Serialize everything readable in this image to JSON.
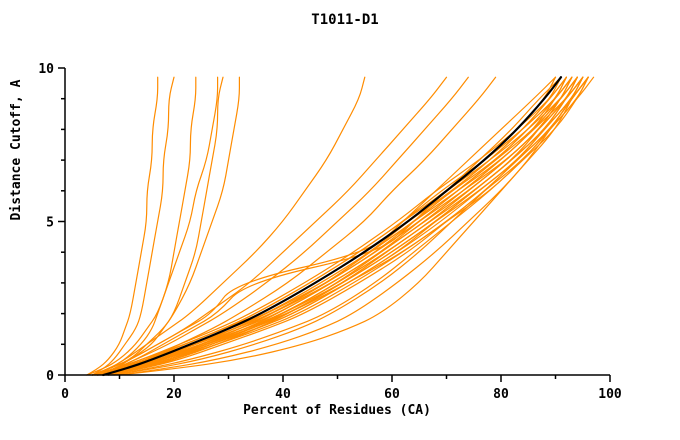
{
  "chart_data": {
    "type": "line",
    "title": "T1011-D1",
    "xlabel": "Percent of Residues (CA)",
    "ylabel": "Distance Cutoff, A",
    "xlim": [
      0,
      100
    ],
    "ylim": [
      0,
      10
    ],
    "x_ticks_major": [
      0,
      20,
      40,
      60,
      80,
      100
    ],
    "x_ticks_minor": [
      10,
      30,
      50,
      70,
      90
    ],
    "y_ticks_major": [
      0,
      5,
      10
    ],
    "y_ticks_minor": [
      1,
      2,
      3,
      4,
      6,
      7,
      8,
      9
    ],
    "grid": false,
    "legend": "none",
    "colors": {
      "model": "#ff8c00",
      "reference": "#000000",
      "background": "#ffffff"
    },
    "y_values": [
      0,
      0.2,
      0.5,
      1,
      1.5,
      2,
      3,
      4,
      5,
      6,
      7,
      8,
      9,
      9.7
    ],
    "reference_curve": {
      "name": "reference-model",
      "x_at_y": [
        7,
        11,
        16,
        23,
        30,
        36,
        46,
        55,
        63,
        70,
        77,
        83,
        88,
        91
      ]
    },
    "model_curves": [
      [
        6,
        10,
        15,
        22,
        29,
        35,
        45,
        54,
        62,
        69,
        77,
        84,
        90,
        93
      ],
      [
        7,
        12,
        18,
        26,
        33,
        39,
        49,
        58,
        65,
        72,
        79,
        85,
        90,
        92
      ],
      [
        5,
        9,
        14,
        21,
        28,
        34,
        44,
        53,
        61,
        68,
        76,
        83,
        89,
        92
      ],
      [
        8,
        13,
        19,
        27,
        34,
        40,
        50,
        58,
        66,
        73,
        80,
        86,
        91,
        94
      ],
      [
        6,
        11,
        17,
        25,
        32,
        38,
        48,
        57,
        64,
        71,
        78,
        84,
        89,
        91
      ],
      [
        7,
        12,
        17,
        24,
        31,
        37,
        47,
        56,
        63,
        70,
        77,
        83,
        88,
        90
      ],
      [
        5,
        10,
        16,
        23,
        30,
        36,
        46,
        55,
        63,
        70,
        78,
        85,
        91,
        94
      ],
      [
        8,
        14,
        20,
        28,
        35,
        41,
        51,
        59,
        67,
        74,
        81,
        87,
        92,
        95
      ],
      [
        6,
        11,
        16,
        24,
        31,
        38,
        48,
        56,
        64,
        71,
        79,
        85,
        90,
        93
      ],
      [
        7,
        13,
        19,
        27,
        34,
        41,
        51,
        60,
        68,
        75,
        82,
        88,
        93,
        96
      ],
      [
        5,
        9,
        15,
        22,
        29,
        36,
        46,
        55,
        63,
        71,
        78,
        84,
        89,
        92
      ],
      [
        6,
        12,
        18,
        26,
        34,
        40,
        50,
        59,
        67,
        74,
        81,
        87,
        91,
        93
      ],
      [
        8,
        13,
        18,
        25,
        32,
        38,
        48,
        57,
        65,
        72,
        79,
        86,
        91,
        94
      ],
      [
        6,
        10,
        15,
        23,
        30,
        37,
        47,
        56,
        64,
        72,
        80,
        86,
        92,
        95
      ],
      [
        7,
        11,
        17,
        25,
        33,
        40,
        51,
        60,
        68,
        75,
        82,
        88,
        92,
        94
      ],
      [
        5,
        10,
        16,
        24,
        32,
        39,
        49,
        58,
        66,
        73,
        80,
        86,
        90,
        92
      ],
      [
        6,
        11,
        18,
        27,
        35,
        42,
        52,
        61,
        69,
        76,
        83,
        88,
        93,
        95
      ],
      [
        7,
        12,
        19,
        28,
        36,
        43,
        53,
        62,
        70,
        77,
        83,
        89,
        93,
        96
      ],
      [
        6,
        10,
        16,
        24,
        31,
        37,
        48,
        57,
        65,
        73,
        81,
        87,
        92,
        94
      ],
      [
        8,
        14,
        21,
        29,
        37,
        44,
        54,
        63,
        70,
        77,
        84,
        89,
        94,
        97
      ],
      [
        5,
        9,
        14,
        22,
        29,
        35,
        45,
        54,
        62,
        70,
        77,
        84,
        90,
        93
      ],
      [
        7,
        13,
        20,
        28,
        35,
        42,
        52,
        61,
        68,
        75,
        82,
        87,
        91,
        93
      ],
      [
        6,
        12,
        17,
        26,
        33,
        40,
        50,
        59,
        67,
        75,
        82,
        88,
        93,
        95
      ],
      [
        7,
        11,
        16,
        23,
        31,
        38,
        49,
        58,
        66,
        74,
        81,
        87,
        92,
        95
      ],
      [
        6,
        10,
        17,
        25,
        33,
        41,
        52,
        62,
        70,
        78,
        84,
        90,
        94,
        96
      ],
      [
        8,
        12,
        18,
        26,
        34,
        41,
        51,
        60,
        68,
        76,
        83,
        89,
        94,
        96
      ],
      [
        9,
        16,
        25,
        35,
        43,
        49,
        58,
        65,
        71,
        77,
        83,
        88,
        92,
        94
      ],
      [
        10,
        18,
        28,
        39,
        47,
        53,
        61,
        68,
        74,
        80,
        85,
        90,
        93,
        95
      ],
      [
        9,
        15,
        23,
        33,
        41,
        48,
        57,
        64,
        71,
        78,
        84,
        89,
        93,
        96
      ],
      [
        4,
        6,
        8,
        10,
        11,
        12,
        13,
        14,
        15,
        15,
        16,
        16,
        17,
        17
      ],
      [
        5,
        7,
        9,
        11,
        13,
        14,
        15,
        16,
        17,
        18,
        18,
        19,
        19,
        20
      ],
      [
        5,
        8,
        11,
        14,
        16,
        17,
        19,
        20,
        21,
        22,
        23,
        23,
        24,
        24
      ],
      [
        6,
        9,
        12,
        16,
        18,
        20,
        22,
        24,
        25,
        26,
        27,
        28,
        28,
        29
      ],
      [
        5,
        8,
        12,
        15,
        18,
        20,
        23,
        25,
        27,
        29,
        30,
        31,
        32,
        32
      ],
      [
        4,
        7,
        10,
        13,
        15,
        17,
        19,
        21,
        23,
        24,
        26,
        27,
        28,
        28
      ],
      [
        6,
        9,
        13,
        19,
        24,
        29,
        37,
        44,
        50,
        56,
        61,
        66,
        71,
        74
      ],
      [
        7,
        10,
        15,
        21,
        27,
        32,
        41,
        48,
        55,
        60,
        66,
        71,
        76,
        79
      ],
      [
        5,
        8,
        12,
        17,
        22,
        26,
        34,
        40,
        46,
        52,
        57,
        62,
        67,
        70
      ],
      [
        5,
        8,
        12,
        17,
        22,
        27,
        31,
        56,
        62,
        68,
        74,
        80,
        86,
        90
      ],
      [
        6,
        9,
        13,
        18,
        23,
        28,
        33,
        58,
        64,
        70,
        76,
        82,
        87,
        91
      ],
      [
        10,
        20,
        32,
        44,
        52,
        58,
        65,
        70,
        75,
        80,
        85,
        89,
        93,
        96
      ],
      [
        5,
        8,
        11,
        15,
        19,
        23,
        29,
        35,
        40,
        44,
        48,
        51,
        54,
        55
      ]
    ]
  }
}
